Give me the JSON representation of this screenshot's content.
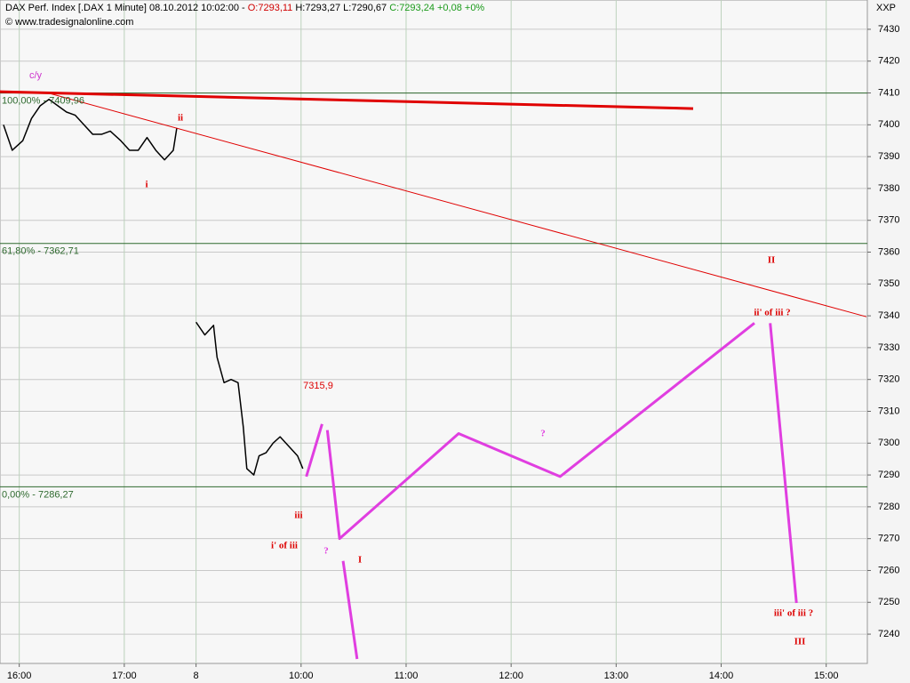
{
  "chart_data": {
    "type": "line",
    "header": {
      "title": "DAX Perf. Index [.DAX  1 Minute] 08.10.2012 10:02:00 -",
      "open": "O:7293,11",
      "high_low": "H:7293,27 L:7290,67",
      "close": "C:7293,24 +0,08 +0%"
    },
    "copyright": "© www.tradesignalonline.com",
    "symbol": "XXP",
    "xlim": [
      -11,
      484.5
    ],
    "xticks": [
      {
        "value": 0,
        "label": "16:00"
      },
      {
        "value": 60,
        "label": "17:00"
      },
      {
        "value": 101,
        "label": "8"
      },
      {
        "value": 161,
        "label": "10:00"
      },
      {
        "value": 221,
        "label": "11:00"
      },
      {
        "value": 281,
        "label": "12:00"
      },
      {
        "value": 341,
        "label": "13:00"
      },
      {
        "value": 401,
        "label": "14:00"
      },
      {
        "value": 461,
        "label": "15:00"
      }
    ],
    "ylim": [
      7230.8,
      7439.2
    ],
    "yticks": [
      7240,
      7250,
      7260,
      7270,
      7280,
      7290,
      7300,
      7310,
      7320,
      7330,
      7340,
      7350,
      7360,
      7370,
      7380,
      7390,
      7400,
      7410,
      7420,
      7430
    ],
    "grid": true,
    "levels": [
      {
        "value": 7409.96,
        "label": "100,00% - 7409,96"
      },
      {
        "value": 7362.71,
        "label": "61,80% - 7362,71"
      },
      {
        "value": 7286.27,
        "label": "0,00% - 7286,27"
      }
    ],
    "level_color": "#2f6a2f",
    "series": [
      {
        "color": "#000000",
        "width": 1.5,
        "x": [
          -9,
          -4,
          2,
          7,
          12,
          17,
          22,
          27,
          32,
          37,
          42,
          47,
          52,
          58,
          63,
          68,
          73,
          78,
          83,
          88,
          90,
          95,
          101,
          106,
          111,
          113,
          117,
          121,
          125,
          128,
          130,
          134,
          137,
          141,
          145,
          149,
          154,
          159,
          162
        ],
        "values": [
          7400,
          7392,
          7395,
          7402,
          7406,
          7408,
          7406,
          7404,
          7403,
          7400,
          7397,
          7397,
          7398,
          7395,
          7392,
          7392,
          7396,
          7392,
          7389,
          7392,
          7399,
          null,
          7338,
          7334,
          7337,
          7327,
          7319,
          7320,
          7319,
          7305,
          7292,
          7290,
          7296,
          7297,
          7300,
          7302,
          7299,
          7296,
          7292
        ]
      },
      {
        "color": "#e03ee0",
        "width": 3,
        "x": [
          164,
          173,
          174,
          176,
          183,
          251,
          309,
          420,
          424,
          429,
          444
        ],
        "values": [
          7289.5,
          7306,
          null,
          7304.1,
          7270,
          7303,
          7289.5,
          7337.7,
          null,
          7337.7,
          7249.8
        ]
      },
      {
        "color": "#e03ee0",
        "width": 3,
        "x": [
          185,
          193
        ],
        "values": [
          7263,
          7232.2
        ]
      },
      {
        "color": "#e00000",
        "width": 3,
        "x": [
          -11,
          385
        ],
        "values": [
          7410.4,
          7405.1
        ]
      },
      {
        "color": "#e00000",
        "width": 1,
        "x": [
          17,
          484
        ],
        "values": [
          7409.9,
          7339.7
        ]
      }
    ],
    "annotations": [
      {
        "text": "c/y",
        "color": "#cc33cc"
      },
      {
        "text": "ii",
        "color": "#dd0000"
      },
      {
        "text": "i",
        "color": "#dd0000"
      },
      {
        "text": "7315,9",
        "color": "#dd0000"
      },
      {
        "text": "iii",
        "color": "#dd0000"
      },
      {
        "text": "i' of iii",
        "color": "#dd0000"
      },
      {
        "text": "?",
        "color": "#e03ee0"
      },
      {
        "text": "I",
        "color": "#dd0000"
      },
      {
        "text": "?",
        "color": "#e03ee0"
      },
      {
        "text": "II",
        "color": "#dd0000"
      },
      {
        "text": "ii' of iii ?",
        "color": "#dd0000"
      },
      {
        "text": "iii' of iii ?",
        "color": "#dd0000"
      },
      {
        "text": "III",
        "color": "#dd0000"
      }
    ]
  }
}
